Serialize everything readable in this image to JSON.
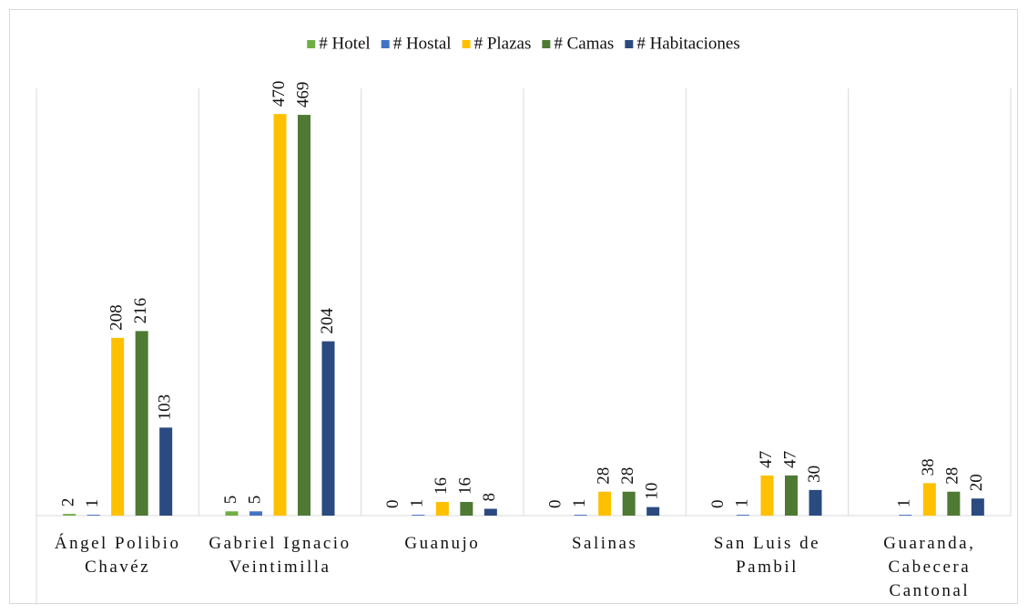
{
  "chart_data": {
    "type": "bar",
    "categories": [
      "Ángel Polibio Chavéz",
      "Gabriel Ignacio Veintimilla",
      "Guanujo",
      "Salinas",
      "San Luis de Pambil",
      "Guaranda, Cabecera Cantonal"
    ],
    "series": [
      {
        "name": "# Hotel",
        "color": "#70ad47",
        "values": [
          2,
          5,
          0,
          0,
          0,
          null
        ]
      },
      {
        "name": "# Hostal",
        "color": "#4472c4",
        "values": [
          1,
          5,
          1,
          1,
          1,
          1
        ]
      },
      {
        "name": "# Plazas",
        "color": "#ffc000",
        "values": [
          208,
          470,
          16,
          28,
          47,
          38
        ]
      },
      {
        "name": "# Camas",
        "color": "#4e7a34",
        "values": [
          216,
          469,
          16,
          28,
          47,
          28
        ]
      },
      {
        "name": "# Habitaciones",
        "color": "#2a4a80",
        "values": [
          103,
          204,
          8,
          10,
          30,
          20
        ]
      }
    ],
    "ylim": [
      0,
      500
    ],
    "legend": "top"
  }
}
